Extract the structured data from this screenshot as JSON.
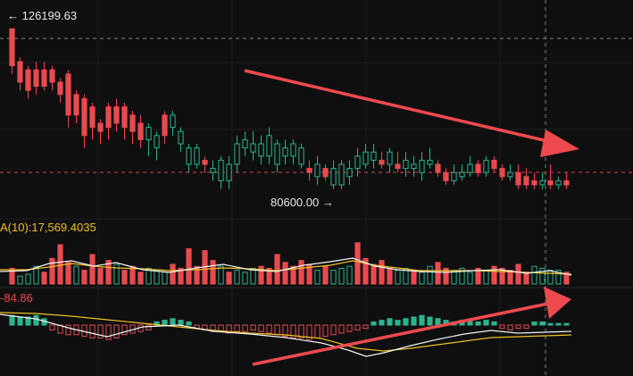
{
  "labels": {
    "high": "← 126199.63",
    "low": "80600.00 →",
    "volume_ma": "A(10):17,569.4035",
    "macd_value": "-84.86"
  },
  "colors": {
    "background": "#0f0f10",
    "up": "#2ab58f",
    "down": "#e94a4d",
    "arrow": "#ee4a4d",
    "ma_yellow": "#f0c020",
    "ma_white": "#f2f2f2",
    "dashed_line": "#b0b0b0",
    "price_line": "#e94a4d"
  },
  "chart_data": {
    "type": "candlestick",
    "candles": [
      [
        3,
        43,
        34,
        42,
        32
      ],
      [
        5,
        35,
        30,
        36,
        28
      ],
      [
        7,
        33,
        28,
        34,
        26
      ],
      [
        9,
        33,
        29,
        35,
        27
      ],
      [
        11,
        33,
        29,
        35,
        28
      ],
      [
        13,
        33,
        30,
        34,
        28
      ],
      [
        15,
        30,
        27,
        31,
        25
      ],
      [
        17,
        32,
        22,
        33,
        19
      ],
      [
        19,
        27,
        22,
        28,
        20
      ],
      [
        21,
        26,
        17,
        27,
        14
      ],
      [
        23,
        24,
        19,
        25,
        16
      ],
      [
        25,
        20,
        18,
        21,
        15
      ],
      [
        27,
        24,
        19,
        25,
        16
      ],
      [
        29,
        24,
        20,
        26,
        18
      ],
      [
        31,
        24,
        19,
        25,
        16
      ],
      [
        33,
        22,
        18,
        23,
        15
      ],
      [
        35,
        20,
        16,
        22,
        14
      ],
      [
        37,
        16,
        19,
        20,
        12
      ],
      [
        39,
        14,
        17,
        18,
        11
      ],
      [
        41,
        22,
        17,
        23,
        15
      ],
      [
        43,
        19,
        22,
        23,
        17
      ],
      [
        45,
        15,
        18,
        19,
        13
      ],
      [
        47,
        10,
        14,
        15,
        8
      ],
      [
        49,
        10,
        14,
        15,
        9
      ],
      [
        51,
        11,
        10,
        12,
        8
      ],
      [
        53,
        8,
        9,
        11,
        6
      ],
      [
        55,
        6,
        11,
        12,
        4
      ],
      [
        57,
        6,
        10,
        12,
        4
      ],
      [
        59,
        10,
        15,
        17,
        8
      ],
      [
        61,
        14,
        16,
        18,
        12
      ],
      [
        63,
        13,
        15,
        18,
        11
      ],
      [
        65,
        12,
        15,
        17,
        10
      ],
      [
        67,
        12,
        17,
        19,
        10
      ],
      [
        69,
        10,
        15,
        16,
        8
      ],
      [
        71,
        12,
        14,
        16,
        10
      ],
      [
        73,
        12,
        15,
        16,
        10
      ],
      [
        75,
        10,
        14,
        15,
        9
      ],
      [
        77,
        9,
        8,
        11,
        6
      ],
      [
        79,
        7,
        10,
        12,
        5
      ],
      [
        81,
        9,
        7,
        10,
        6
      ],
      [
        83,
        5,
        9,
        11,
        4
      ],
      [
        85,
        5,
        10,
        11,
        4
      ],
      [
        87,
        7,
        9,
        11,
        5
      ],
      [
        89,
        9,
        12,
        14,
        7
      ],
      [
        91,
        10,
        13,
        15,
        9
      ],
      [
        93,
        11,
        13,
        15,
        9
      ],
      [
        95,
        11,
        10,
        13,
        9
      ],
      [
        97,
        10,
        13,
        14,
        8
      ],
      [
        99,
        10,
        9,
        13,
        8
      ],
      [
        101,
        9,
        11,
        13,
        7
      ],
      [
        103,
        9,
        10,
        12,
        7
      ],
      [
        105,
        8,
        11,
        13,
        6
      ],
      [
        107,
        10,
        11,
        14,
        9
      ],
      [
        109,
        10,
        8,
        11,
        7
      ],
      [
        111,
        8,
        6,
        9,
        5
      ],
      [
        113,
        6,
        8,
        10,
        5
      ],
      [
        115,
        7,
        8,
        10,
        6
      ],
      [
        117,
        8,
        10,
        12,
        7
      ],
      [
        119,
        10,
        8,
        11,
        7
      ],
      [
        121,
        8,
        11,
        12,
        7
      ],
      [
        123,
        11,
        9,
        12,
        8
      ],
      [
        125,
        9,
        7,
        10,
        6
      ],
      [
        127,
        7,
        8,
        10,
        6
      ],
      [
        129,
        8,
        5,
        10,
        4
      ],
      [
        131,
        7,
        5,
        9,
        4
      ],
      [
        133,
        6,
        5,
        8,
        4
      ],
      [
        135,
        5,
        6,
        8,
        4
      ],
      [
        137,
        6,
        5,
        10,
        4
      ],
      [
        139,
        5,
        6,
        7,
        4
      ],
      [
        141,
        6,
        5,
        8,
        4
      ]
    ],
    "volume": [
      [
        3,
        8,
        0
      ],
      [
        5,
        4,
        1
      ],
      [
        7,
        5,
        1
      ],
      [
        9,
        9,
        1
      ],
      [
        11,
        6,
        0
      ],
      [
        13,
        13,
        0
      ],
      [
        15,
        20,
        0
      ],
      [
        17,
        11,
        0
      ],
      [
        19,
        9,
        1
      ],
      [
        21,
        7,
        0
      ],
      [
        23,
        15,
        0
      ],
      [
        25,
        8,
        0
      ],
      [
        27,
        12,
        0
      ],
      [
        29,
        10,
        1
      ],
      [
        31,
        7,
        0
      ],
      [
        33,
        9,
        0
      ],
      [
        35,
        6,
        0
      ],
      [
        37,
        8,
        1
      ],
      [
        39,
        7,
        1
      ],
      [
        41,
        6,
        1
      ],
      [
        43,
        10,
        0
      ],
      [
        45,
        8,
        0
      ],
      [
        47,
        18,
        0
      ],
      [
        49,
        9,
        0
      ],
      [
        51,
        17,
        0
      ],
      [
        53,
        12,
        0
      ],
      [
        55,
        9,
        1
      ],
      [
        57,
        6,
        0
      ],
      [
        59,
        7,
        1
      ],
      [
        61,
        6,
        1
      ],
      [
        63,
        8,
        1
      ],
      [
        65,
        9,
        0
      ],
      [
        67,
        8,
        0
      ],
      [
        69,
        15,
        0
      ],
      [
        71,
        11,
        0
      ],
      [
        73,
        9,
        0
      ],
      [
        75,
        12,
        0
      ],
      [
        77,
        10,
        0
      ],
      [
        79,
        7,
        1
      ],
      [
        81,
        9,
        0
      ],
      [
        83,
        7,
        1
      ],
      [
        85,
        8,
        1
      ],
      [
        87,
        9,
        1
      ],
      [
        89,
        21,
        0
      ],
      [
        91,
        13,
        0
      ],
      [
        93,
        10,
        0
      ],
      [
        95,
        12,
        0
      ],
      [
        97,
        8,
        0
      ],
      [
        99,
        7,
        1
      ],
      [
        101,
        8,
        1
      ],
      [
        103,
        7,
        0
      ],
      [
        105,
        6,
        1
      ],
      [
        107,
        9,
        1
      ],
      [
        109,
        11,
        0
      ],
      [
        111,
        8,
        0
      ],
      [
        113,
        7,
        1
      ],
      [
        115,
        8,
        1
      ],
      [
        117,
        6,
        1
      ],
      [
        119,
        8,
        0
      ],
      [
        121,
        7,
        1
      ],
      [
        123,
        9,
        0
      ],
      [
        125,
        8,
        0
      ],
      [
        127,
        7,
        0
      ],
      [
        129,
        10,
        0
      ],
      [
        131,
        6,
        0
      ],
      [
        133,
        9,
        1
      ],
      [
        135,
        8,
        1
      ],
      [
        137,
        7,
        1
      ],
      [
        139,
        7,
        1
      ],
      [
        141,
        6,
        0
      ]
    ],
    "macd": [
      [
        3,
        6,
        1
      ],
      [
        5,
        5,
        1
      ],
      [
        7,
        5,
        1
      ],
      [
        9,
        6,
        1
      ],
      [
        11,
        4,
        1
      ],
      [
        13,
        -3,
        0
      ],
      [
        15,
        -5,
        0
      ],
      [
        17,
        -6,
        0
      ],
      [
        19,
        -6,
        0
      ],
      [
        21,
        -7,
        0
      ],
      [
        23,
        -8,
        0
      ],
      [
        25,
        -8,
        0
      ],
      [
        27,
        -9,
        0
      ],
      [
        29,
        -8,
        0
      ],
      [
        31,
        -6,
        0
      ],
      [
        33,
        -5,
        0
      ],
      [
        35,
        -4,
        0
      ],
      [
        37,
        -3,
        0
      ],
      [
        39,
        2,
        1
      ],
      [
        41,
        3,
        1
      ],
      [
        43,
        4,
        1
      ],
      [
        45,
        3,
        1
      ],
      [
        47,
        2,
        1
      ],
      [
        49,
        -2,
        0
      ],
      [
        51,
        -3,
        0
      ],
      [
        53,
        -4,
        0
      ],
      [
        55,
        -4,
        0
      ],
      [
        57,
        -5,
        0
      ],
      [
        59,
        -4,
        0
      ],
      [
        61,
        -4,
        0
      ],
      [
        63,
        -3,
        0
      ],
      [
        65,
        -4,
        0
      ],
      [
        67,
        -5,
        0
      ],
      [
        69,
        -6,
        0
      ],
      [
        71,
        -7,
        0
      ],
      [
        73,
        -8,
        0
      ],
      [
        75,
        -8,
        0
      ],
      [
        77,
        -9,
        0
      ],
      [
        79,
        -8,
        0
      ],
      [
        81,
        -7,
        0
      ],
      [
        83,
        -6,
        0
      ],
      [
        85,
        -5,
        0
      ],
      [
        87,
        -4,
        0
      ],
      [
        89,
        -3,
        0
      ],
      [
        91,
        -2,
        0
      ],
      [
        93,
        2,
        1
      ],
      [
        95,
        3,
        1
      ],
      [
        97,
        4,
        1
      ],
      [
        99,
        3,
        1
      ],
      [
        101,
        4,
        1
      ],
      [
        103,
        5,
        1
      ],
      [
        105,
        6,
        1
      ],
      [
        107,
        5,
        1
      ],
      [
        109,
        4,
        1
      ],
      [
        111,
        3,
        1
      ],
      [
        113,
        2,
        1
      ],
      [
        115,
        3,
        1
      ],
      [
        117,
        3,
        1
      ],
      [
        119,
        2,
        1
      ],
      [
        121,
        3,
        1
      ],
      [
        123,
        2,
        1
      ],
      [
        125,
        -2,
        0
      ],
      [
        127,
        -3,
        0
      ],
      [
        129,
        -2,
        0
      ],
      [
        131,
        -2,
        0
      ],
      [
        133,
        2,
        1
      ],
      [
        135,
        2,
        1
      ],
      [
        137,
        1,
        1
      ],
      [
        139,
        1,
        1
      ],
      [
        141,
        1,
        1
      ]
    ]
  }
}
